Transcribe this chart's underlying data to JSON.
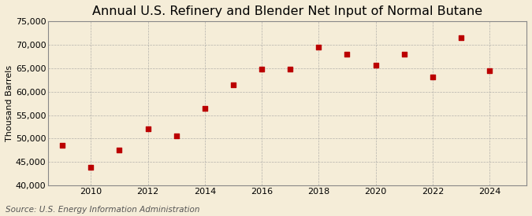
{
  "title": "Annual U.S. Refinery and Blender Net Input of Normal Butane",
  "ylabel": "Thousand Barrels",
  "source": "Source: U.S. Energy Information Administration",
  "years": [
    2009,
    2010,
    2011,
    2012,
    2013,
    2014,
    2015,
    2016,
    2017,
    2018,
    2019,
    2020,
    2021,
    2022,
    2023,
    2024
  ],
  "values": [
    48500,
    43800,
    47500,
    52000,
    50500,
    56500,
    61500,
    64800,
    64800,
    69500,
    68000,
    65700,
    68000,
    63200,
    71500,
    64500
  ],
  "ylim": [
    40000,
    75000
  ],
  "yticks": [
    40000,
    45000,
    50000,
    55000,
    60000,
    65000,
    70000,
    75000
  ],
  "xticks": [
    2010,
    2012,
    2014,
    2016,
    2018,
    2020,
    2022,
    2024
  ],
  "marker_color": "#bb0000",
  "marker": "s",
  "marker_size": 4,
  "bg_color": "#f5edd8",
  "plot_bg_color": "#f5edd8",
  "grid_color": "#999999",
  "title_fontsize": 11.5,
  "label_fontsize": 8,
  "tick_fontsize": 8,
  "source_fontsize": 7.5
}
